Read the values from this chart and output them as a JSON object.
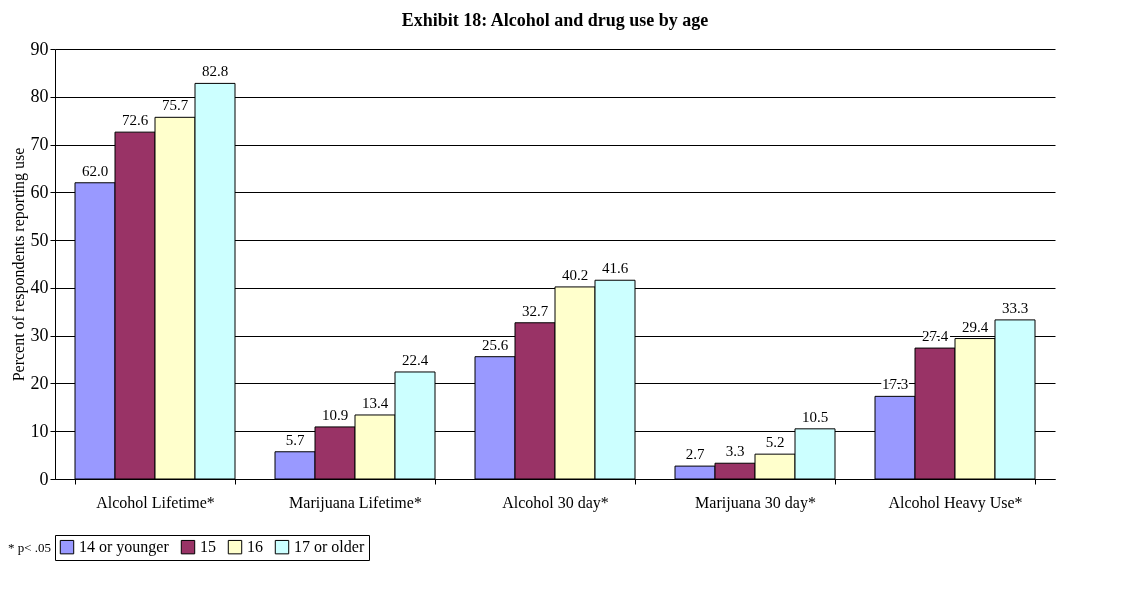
{
  "chart_data": {
    "type": "bar",
    "title": "Exhibit 18: Alcohol and drug use by age",
    "ylabel": "Percent of respondents reporting use",
    "categories": [
      "Alcohol Lifetime*",
      "Marijuana Lifetime*",
      "Alcohol 30 day*",
      "Marijuana 30 day*",
      "Alcohol Heavy Use*"
    ],
    "series": [
      {
        "name": "14 or younger",
        "color": "#9999ff",
        "values": [
          62.0,
          5.7,
          25.6,
          2.7,
          17.3
        ],
        "value_labels": [
          "62.0",
          "5.7",
          "25.6",
          "2.7",
          "17.3"
        ]
      },
      {
        "name": "15",
        "color": "#993366",
        "values": [
          72.6,
          10.9,
          32.7,
          3.3,
          27.4
        ],
        "value_labels": [
          "72.6",
          "10.9",
          "32.7",
          "3.3",
          "27.4"
        ]
      },
      {
        "name": "16",
        "color": "#ffffcc",
        "values": [
          75.7,
          13.4,
          40.2,
          5.2,
          29.4
        ],
        "value_labels": [
          "75.7",
          "13.4",
          "40.2",
          "5.2",
          "29.4"
        ]
      },
      {
        "name": "17 or older",
        "color": "#ccffff",
        "values": [
          82.8,
          22.4,
          41.6,
          10.5,
          33.3
        ],
        "value_labels": [
          "82.8",
          "22.4",
          "41.6",
          "10.5",
          "33.3"
        ]
      }
    ],
    "ylim": [
      0,
      90
    ],
    "yticks": [
      0,
      10,
      20,
      30,
      40,
      50,
      60,
      70,
      80,
      90
    ],
    "grid": "y",
    "legend": "bottom",
    "annotations": [
      "* p< .05"
    ]
  }
}
